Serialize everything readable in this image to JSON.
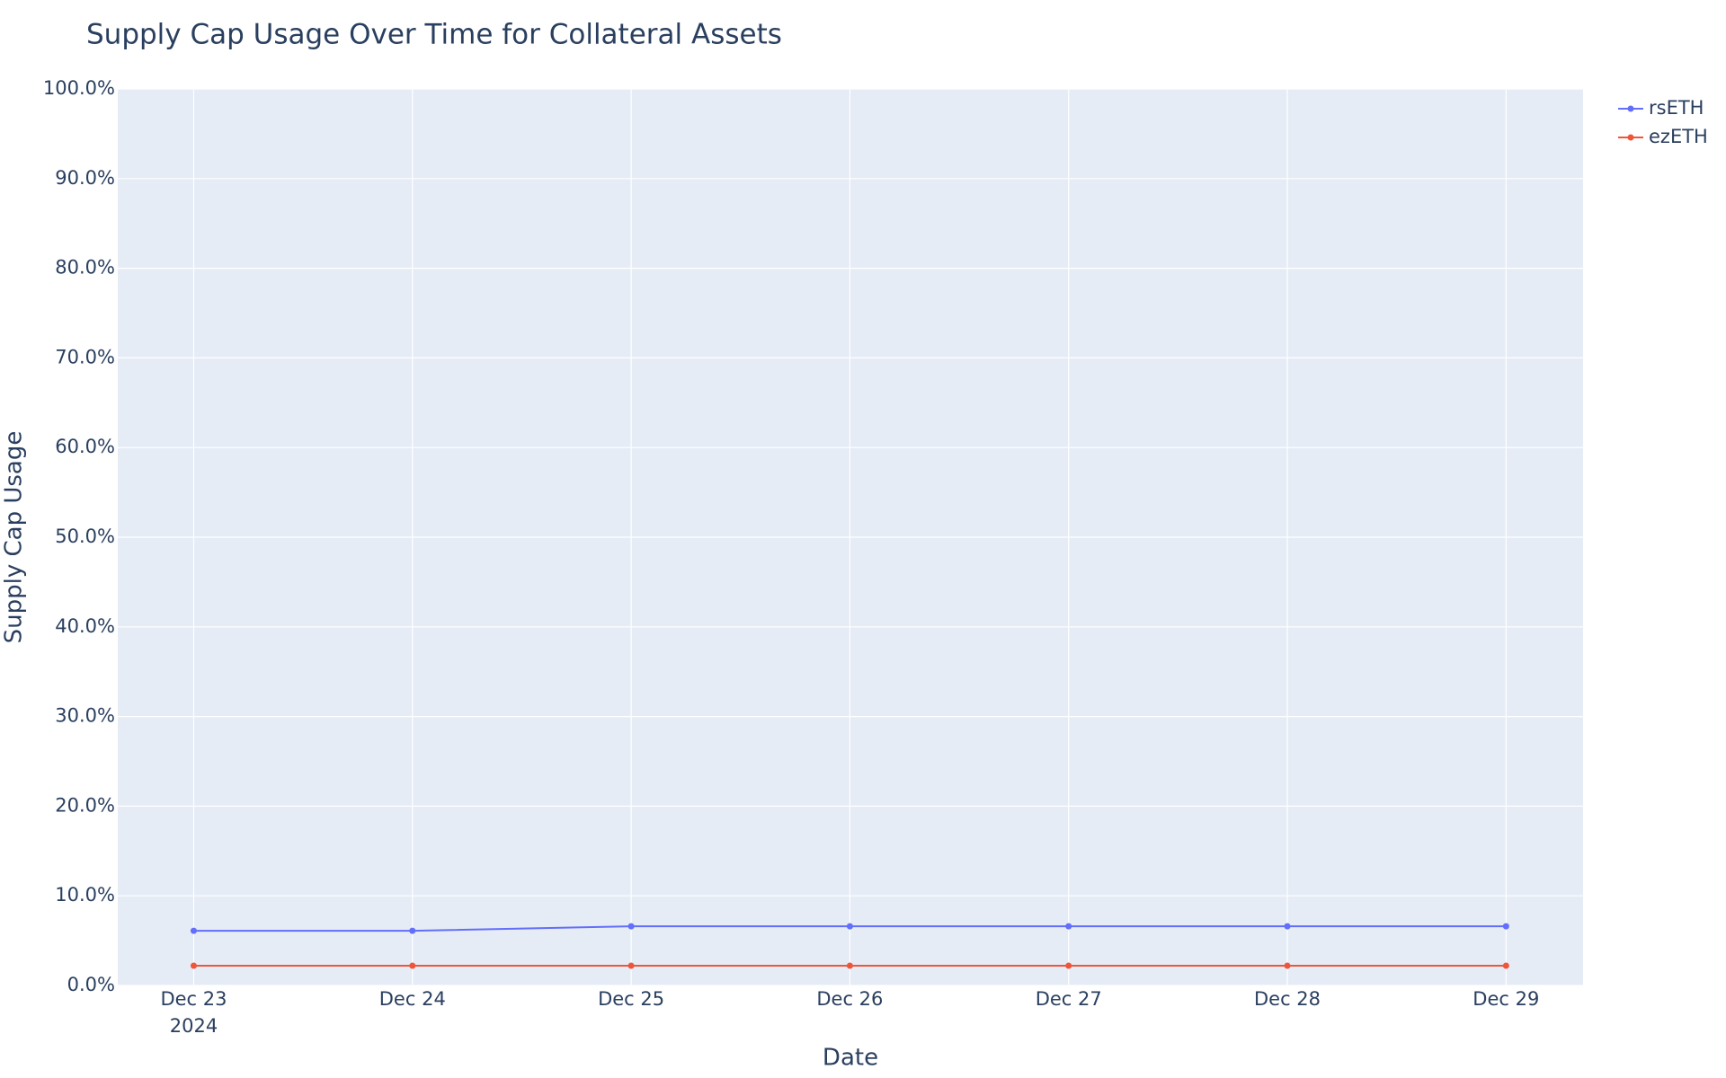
{
  "chart_data": {
    "type": "line",
    "title": "Supply Cap Usage Over Time for Collateral Assets",
    "xlabel": "Date",
    "ylabel": "Supply Cap Usage",
    "x": [
      "2024-12-23",
      "2024-12-24",
      "2024-12-25",
      "2024-12-26",
      "2024-12-27",
      "2024-12-28",
      "2024-12-29"
    ],
    "series": [
      {
        "name": "rsETH",
        "color": "#636efa",
        "values": [
          6.1,
          6.1,
          6.6,
          6.6,
          6.6,
          6.6,
          6.6
        ]
      },
      {
        "name": "ezETH",
        "color": "#ef553b",
        "values": [
          2.2,
          2.2,
          2.2,
          2.2,
          2.2,
          2.2,
          2.2
        ]
      }
    ],
    "xlim": [
      "2024-12-22T15:40:00Z",
      "2024-12-29T08:27:00Z"
    ],
    "xticks": [
      {
        "value": "2024-12-23",
        "label": "Dec 23"
      },
      {
        "value": "2024-12-24",
        "label": "Dec 24"
      },
      {
        "value": "2024-12-25",
        "label": "Dec 25"
      },
      {
        "value": "2024-12-26",
        "label": "Dec 26"
      },
      {
        "value": "2024-12-27",
        "label": "Dec 27"
      },
      {
        "value": "2024-12-28",
        "label": "Dec 28"
      },
      {
        "value": "2024-12-29",
        "label": "Dec 29"
      }
    ],
    "xtick_year": "2024",
    "ylim": [
      0,
      100
    ],
    "yticks": [
      {
        "value": 0,
        "label": "0.0%"
      },
      {
        "value": 10,
        "label": "10.0%"
      },
      {
        "value": 20,
        "label": "20.0%"
      },
      {
        "value": 30,
        "label": "30.0%"
      },
      {
        "value": 40,
        "label": "40.0%"
      },
      {
        "value": 50,
        "label": "50.0%"
      },
      {
        "value": 60,
        "label": "60.0%"
      },
      {
        "value": 70,
        "label": "70.0%"
      },
      {
        "value": 80,
        "label": "80.0%"
      },
      {
        "value": 90,
        "label": "90.0%"
      },
      {
        "value": 100,
        "label": "100.0%"
      }
    ],
    "grid": true,
    "legend": "top-right"
  }
}
